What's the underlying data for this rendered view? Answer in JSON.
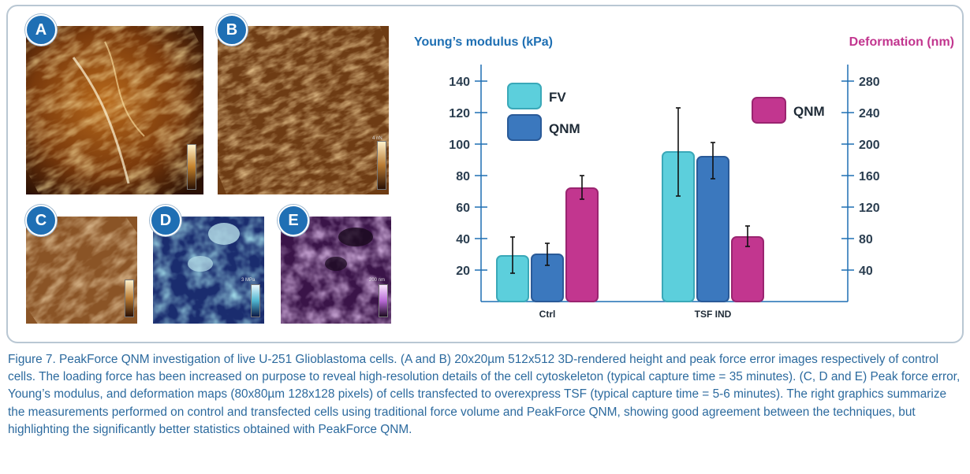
{
  "panels": {
    "a": {
      "label": "A"
    },
    "b": {
      "label": "B",
      "scale_text": "4 nN"
    },
    "c": {
      "label": "C"
    },
    "d": {
      "label": "D",
      "scale_text": "3 MPa"
    },
    "e": {
      "label": "E",
      "scale_text": "200 nm"
    }
  },
  "colors": {
    "fv": "#5ccfdc",
    "qnm_modulus": "#3b78be",
    "qnm_deformation": "#c2368f",
    "axis_left": "#1e6fb3",
    "axis_right": "#c2368f",
    "caption": "#2c6a9e",
    "frame": "#b9c7d3"
  },
  "chart_data": {
    "type": "bar",
    "categories": [
      "Ctrl",
      "TSF IND"
    ],
    "ylabel_left": "Young’s modulus (kPa)",
    "ylabel_right": "Deformation (nm)",
    "ylim_left": [
      0,
      150
    ],
    "ylim_right": [
      0,
      300
    ],
    "yticks_left": [
      20,
      40,
      60,
      80,
      100,
      120,
      140
    ],
    "yticks_right": [
      40,
      80,
      120,
      160,
      200,
      240,
      280
    ],
    "grid": false,
    "legend": [
      {
        "label": "FV",
        "placement": "top-left"
      },
      {
        "label": "QNM",
        "placement": "top-left"
      },
      {
        "label": "QNM",
        "placement": "top-right"
      }
    ],
    "series": [
      {
        "name": "FV",
        "axis": "left",
        "values": [
          29,
          95
        ],
        "error_low": [
          18,
          67
        ],
        "error_high": [
          41,
          123
        ]
      },
      {
        "name": "QNM",
        "axis": "left",
        "values": [
          30,
          92
        ],
        "error_low": [
          23,
          78
        ],
        "error_high": [
          37,
          101
        ]
      },
      {
        "name": "QNM",
        "axis": "right",
        "values": [
          144,
          82
        ],
        "error_low": [
          130,
          70
        ],
        "error_high": [
          160,
          96
        ]
      }
    ]
  },
  "caption": "Figure 7. PeakForce QNM investigation of live U-251 Glioblastoma cells. (A and B) 20x20µm 512x512 3D-rendered height and peak force error images respectively of control cells. The loading force has been increased on purpose to reveal high-resolution details of the cell cytoskeleton (typical capture time = 35 minutes). (C, D and E) Peak force error, Young’s modulus, and deformation maps (80x80µm 128x128 pixels) of cells transfected to overexpress TSF (typical capture time = 5-6 minutes). The right graphics summarize the measurements performed on control and transfected cells using traditional force volume and PeakForce QNM, showing good agreement between the techniques, but highlighting the significantly better statistics obtained with PeakForce QNM."
}
